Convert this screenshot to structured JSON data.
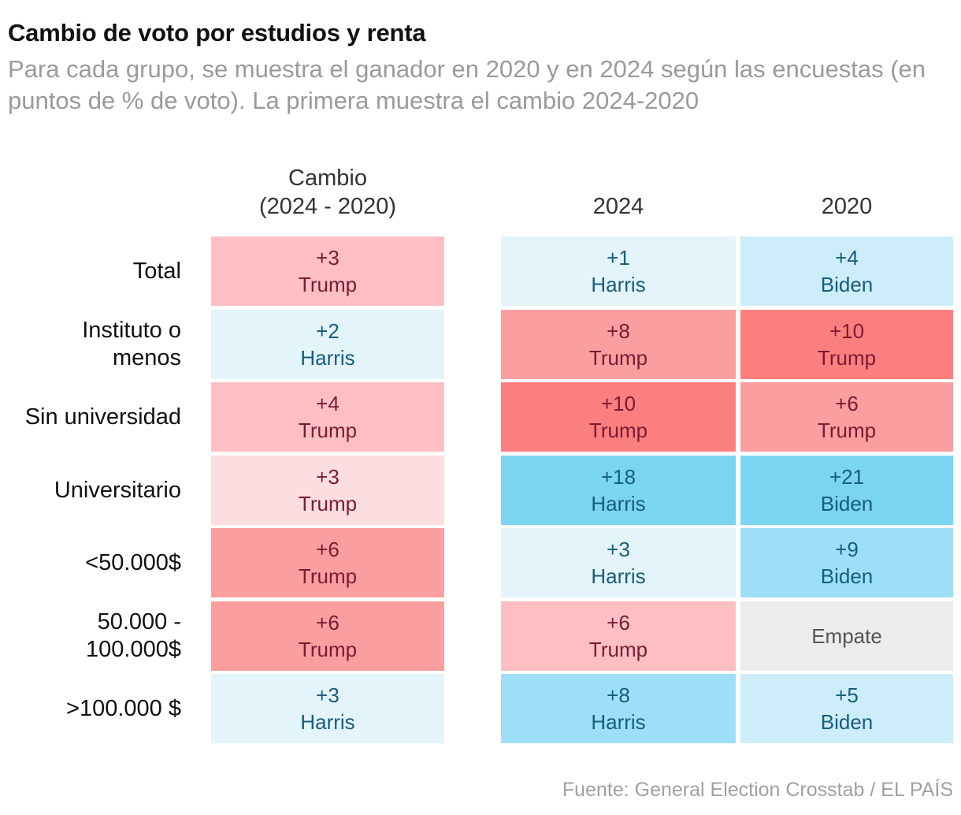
{
  "title": "Cambio de voto por estudios y renta",
  "subtitle": "Para cada grupo, se muestra el ganador en 2020 y en 2024 según las encuestas (en puntos de % de voto). La primera muestra el cambio 2024-2020",
  "source": "Fuente: General Election Crosstab / EL PAÍS",
  "colors": {
    "trump_text": "#7b1a35",
    "dem_text": "#175d7d",
    "tie_text": "#555555",
    "red_1": "#fcdde0",
    "red_2": "#fdbfc2",
    "red_3": "#fb9e9f",
    "red_4": "#fc7f7f",
    "blue_1": "#e3f4fb",
    "blue_2": "#cdedfa",
    "blue_3": "#9ddff6",
    "blue_4": "#7ad5f2",
    "tie": "#ececec"
  },
  "chart_data": {
    "type": "table",
    "columns": [
      "Cambio\n(2024 - 2020)",
      "2024",
      "2020"
    ],
    "rows": [
      {
        "label": "Total",
        "cells": [
          {
            "value": "+3",
            "winner": "Trump",
            "party": "R",
            "level": 2
          },
          {
            "value": "+1",
            "winner": "Harris",
            "party": "D",
            "level": 1
          },
          {
            "value": "+4",
            "winner": "Biden",
            "party": "D",
            "level": 2
          }
        ]
      },
      {
        "label": "Instituto o\nmenos",
        "cells": [
          {
            "value": "+2",
            "winner": "Harris",
            "party": "D",
            "level": 1
          },
          {
            "value": "+8",
            "winner": "Trump",
            "party": "R",
            "level": 3
          },
          {
            "value": "+10",
            "winner": "Trump",
            "party": "R",
            "level": 4
          }
        ]
      },
      {
        "label": "Sin universidad",
        "cells": [
          {
            "value": "+4",
            "winner": "Trump",
            "party": "R",
            "level": 2
          },
          {
            "value": "+10",
            "winner": "Trump",
            "party": "R",
            "level": 4
          },
          {
            "value": "+6",
            "winner": "Trump",
            "party": "R",
            "level": 3
          }
        ]
      },
      {
        "label": "Universitario",
        "cells": [
          {
            "value": "+3",
            "winner": "Trump",
            "party": "R",
            "level": 1
          },
          {
            "value": "+18",
            "winner": "Harris",
            "party": "D",
            "level": 4
          },
          {
            "value": "+21",
            "winner": "Biden",
            "party": "D",
            "level": 4
          }
        ]
      },
      {
        "label": "<50.000$",
        "cells": [
          {
            "value": "+6",
            "winner": "Trump",
            "party": "R",
            "level": 3
          },
          {
            "value": "+3",
            "winner": "Harris",
            "party": "D",
            "level": 1
          },
          {
            "value": "+9",
            "winner": "Biden",
            "party": "D",
            "level": 3
          }
        ]
      },
      {
        "label": "50.000 -\n100.000$",
        "cells": [
          {
            "value": "+6",
            "winner": "Trump",
            "party": "R",
            "level": 3
          },
          {
            "value": "+6",
            "winner": "Trump",
            "party": "R",
            "level": 2
          },
          {
            "value": "",
            "winner": "Empate",
            "party": "T",
            "level": 0
          }
        ]
      },
      {
        "label": ">100.000 $",
        "cells": [
          {
            "value": "+3",
            "winner": "Harris",
            "party": "D",
            "level": 1
          },
          {
            "value": "+8",
            "winner": "Harris",
            "party": "D",
            "level": 3
          },
          {
            "value": "+5",
            "winner": "Biden",
            "party": "D",
            "level": 2
          }
        ]
      }
    ]
  }
}
